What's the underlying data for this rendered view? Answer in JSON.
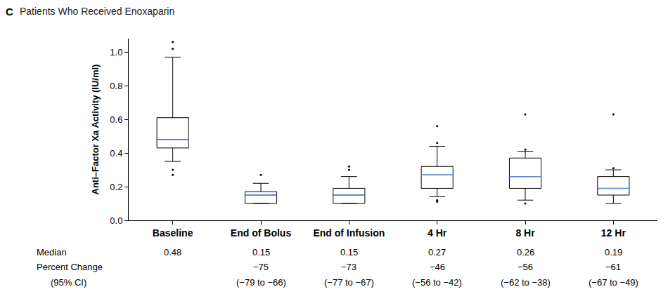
{
  "chart_data": {
    "type": "box",
    "panel": "C",
    "title": "Patients Who Received Enoxaparin",
    "ylabel": "Anti–Factor Xa Activity (IU/ml)",
    "categories": [
      "Baseline",
      "End of Bolus",
      "End of Infusion",
      "4 Hr",
      "8 Hr",
      "12 Hr"
    ],
    "q1": [
      0.43,
      0.1,
      0.1,
      0.19,
      0.19,
      0.15
    ],
    "median": [
      0.48,
      0.15,
      0.15,
      0.27,
      0.26,
      0.19
    ],
    "q3": [
      0.61,
      0.17,
      0.19,
      0.32,
      0.37,
      0.26
    ],
    "whisker_low": [
      0.35,
      0.1,
      0.1,
      0.14,
      0.12,
      0.1
    ],
    "whisker_high": [
      0.97,
      0.22,
      0.26,
      0.44,
      0.41,
      0.3
    ],
    "outliers": [
      [
        1.06,
        1.02,
        0.3,
        0.27
      ],
      [
        0.27
      ],
      [
        0.3,
        0.32
      ],
      [
        0.46,
        0.56,
        0.12,
        0.11
      ],
      [
        0.63,
        0.42,
        0.1
      ],
      [
        0.63,
        0.31
      ]
    ],
    "color": "#000000",
    "ylim": [
      0,
      1.08
    ],
    "yticks": [
      {
        "value": 0,
        "label": "0.0"
      },
      0.2,
      0.4,
      0.6,
      0.8,
      {
        "value": 1,
        "label": "1.0"
      }
    ],
    "grid": false,
    "table": {
      "row_labels": [
        "Median",
        "Percent Change",
        "(95% CI)"
      ],
      "rows": [
        [
          "0.48",
          "0.15",
          "0.15",
          "0.27",
          "0.26",
          "0.19"
        ],
        [
          null,
          "−75",
          "−73",
          "−46",
          "−56",
          "−61"
        ],
        [
          null,
          "(−79 to −66)",
          "(−77 to −67)",
          "(−56 to −42)",
          "(−62 to −38)",
          "(−67 to −49)"
        ]
      ]
    }
  }
}
